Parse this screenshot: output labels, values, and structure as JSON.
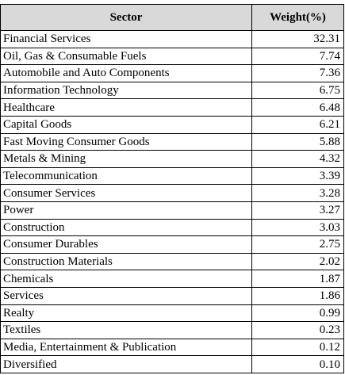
{
  "table": {
    "headers": [
      "Sector",
      "Weight(%)"
    ],
    "rows": [
      {
        "sector": "Financial Services",
        "weight": "32.31"
      },
      {
        "sector": "Oil, Gas & Consumable Fuels",
        "weight": "7.74"
      },
      {
        "sector": "Automobile and Auto Components",
        "weight": "7.36"
      },
      {
        "sector": "Information Technology",
        "weight": "6.75"
      },
      {
        "sector": "Healthcare",
        "weight": "6.48"
      },
      {
        "sector": "Capital Goods",
        "weight": "6.21"
      },
      {
        "sector": "Fast Moving Consumer Goods",
        "weight": "5.88"
      },
      {
        "sector": "Metals & Mining",
        "weight": "4.32"
      },
      {
        "sector": "Telecommunication",
        "weight": "3.39"
      },
      {
        "sector": "Consumer Services",
        "weight": "3.28"
      },
      {
        "sector": "Power",
        "weight": "3.27"
      },
      {
        "sector": "Construction",
        "weight": "3.03"
      },
      {
        "sector": "Consumer Durables",
        "weight": "2.75"
      },
      {
        "sector": "Construction Materials",
        "weight": "2.02"
      },
      {
        "sector": "Chemicals",
        "weight": "1.87"
      },
      {
        "sector": "Services",
        "weight": "1.86"
      },
      {
        "sector": "Realty",
        "weight": "0.99"
      },
      {
        "sector": "Textiles",
        "weight": "0.23"
      },
      {
        "sector": "Media, Entertainment & Publication",
        "weight": "0.12"
      },
      {
        "sector": "Diversified",
        "weight": "0.10"
      }
    ]
  }
}
